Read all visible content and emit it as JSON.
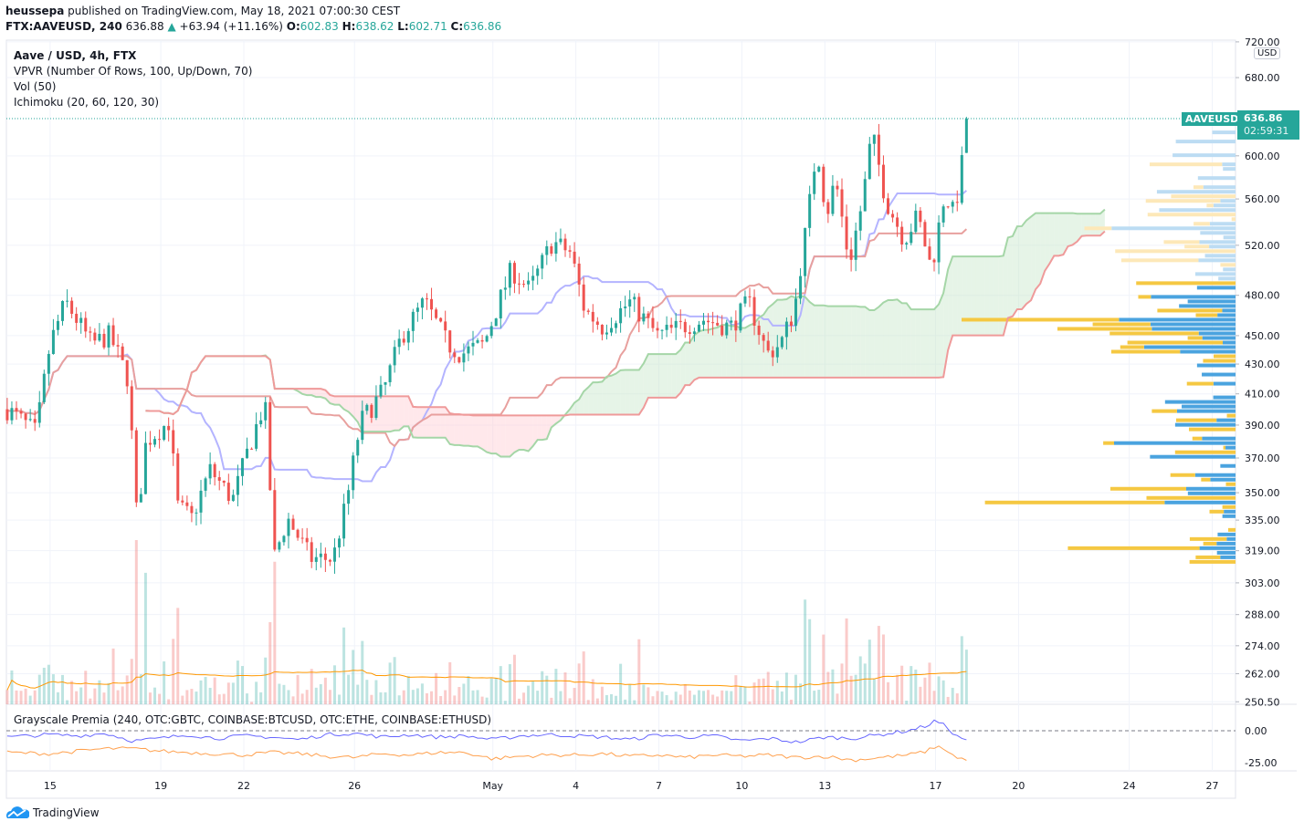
{
  "header": {
    "publisher": "heussepa",
    "published_text": "published on TradingView.com, May 18, 2021 07:00:30 CEST",
    "symbol": "FTX:AAVEUSD, 240",
    "last": "636.88",
    "change": "+63.94 (+11.16%)",
    "open_label": "O:",
    "open": "602.83",
    "high_label": "H:",
    "high": "638.62",
    "low_label": "L:",
    "low": "602.71",
    "close_label": "C:",
    "close": "636.86"
  },
  "legend": {
    "title": "Aave / USD, 4h, FTX",
    "vpvr": "VPVR (Number Of Rows, 100, Up/Down, 70)",
    "vol": "Vol (50)",
    "ichimoku": "Ichimoku (20, 60, 120, 30)"
  },
  "price_axis": {
    "currency": "USD",
    "symbol_tag": "AAVEUSD",
    "last_price": "636.86",
    "countdown": "02:59:31",
    "labels": [
      "720.00",
      "680.00",
      "600.00",
      "560.00",
      "520.00",
      "480.00",
      "450.00",
      "430.00",
      "410.00",
      "390.00",
      "370.00",
      "350.00",
      "335.00",
      "319.00",
      "303.00",
      "288.00",
      "274.00",
      "262.00",
      "250.50"
    ]
  },
  "premia": {
    "title": "Grayscale Premia (240, OTC:GBTC, COINBASE:BTCUSD, OTC:ETHE, COINBASE:ETHUSD)",
    "labels": [
      "0.00",
      "-25.00"
    ]
  },
  "time_axis": {
    "labels": [
      {
        "text": "15",
        "day": 0
      },
      {
        "text": "19",
        "day": 4
      },
      {
        "text": "22",
        "day": 7
      },
      {
        "text": "26",
        "day": 11
      },
      {
        "text": "May",
        "day": 16
      },
      {
        "text": "4",
        "day": 19
      },
      {
        "text": "7",
        "day": 22
      },
      {
        "text": "10",
        "day": 25
      },
      {
        "text": "13",
        "day": 28
      },
      {
        "text": "17",
        "day": 32
      },
      {
        "text": "20",
        "day": 35
      },
      {
        "text": "24",
        "day": 39
      },
      {
        "text": "27",
        "day": 42
      }
    ]
  },
  "brand": {
    "name": "TradingView"
  },
  "colors": {
    "up": "#26a69a",
    "down": "#ef5350",
    "tenkan": "#b4b4ff",
    "kijun": "#e8a09e",
    "cloud_up": "#c8e6c9",
    "cloud_down": "#ffcdd2",
    "vp_up": "#4aa3df",
    "vp_down": "#f5c842",
    "premia_btc": "#6666ff",
    "premia_eth": "#ffa04d"
  },
  "chart_data": {
    "type": "candlestick",
    "title": "Aave / USD, 4h, FTX",
    "x_unit": "days since Apr 15 2021",
    "xlim": [
      -1.58,
      42.84
    ],
    "ylim": [
      249.5,
      722
    ],
    "y_scale": "log",
    "close_keypoints": [
      [
        -1.55,
        400
      ],
      [
        -0.5,
        385
      ],
      [
        0,
        444
      ],
      [
        0.56,
        475
      ],
      [
        1.49,
        444
      ],
      [
        2.15,
        450
      ],
      [
        2.81,
        420
      ],
      [
        3.14,
        334
      ],
      [
        3.47,
        380
      ],
      [
        4.29,
        392
      ],
      [
        4.62,
        342
      ],
      [
        5.12,
        336
      ],
      [
        5.78,
        363
      ],
      [
        6.6,
        346
      ],
      [
        7.26,
        380
      ],
      [
        7.76,
        404
      ],
      [
        8.09,
        315
      ],
      [
        8.58,
        336
      ],
      [
        9.41,
        315
      ],
      [
        10.23,
        315
      ],
      [
        10.73,
        346
      ],
      [
        11.22,
        392
      ],
      [
        12.05,
        412
      ],
      [
        12.71,
        450
      ],
      [
        13.53,
        475
      ],
      [
        14.36,
        444
      ],
      [
        14.85,
        437
      ],
      [
        15.68,
        444
      ],
      [
        16.67,
        500
      ],
      [
        17.33,
        484
      ],
      [
        18.15,
        523
      ],
      [
        18.81,
        514
      ],
      [
        19.31,
        469
      ],
      [
        19.97,
        456
      ],
      [
        20.96,
        475
      ],
      [
        21.95,
        450
      ],
      [
        22.77,
        456
      ],
      [
        23.6,
        462
      ],
      [
        24.59,
        456
      ],
      [
        25.25,
        475
      ],
      [
        25.91,
        437
      ],
      [
        26.4,
        444
      ],
      [
        26.9,
        469
      ],
      [
        27.39,
        545
      ],
      [
        27.72,
        610
      ],
      [
        28.05,
        545
      ],
      [
        28.38,
        578
      ],
      [
        28.88,
        505
      ],
      [
        29.37,
        559
      ],
      [
        29.7,
        622
      ],
      [
        30.2,
        559
      ],
      [
        30.86,
        525
      ],
      [
        31.35,
        545
      ],
      [
        31.85,
        500
      ],
      [
        32.34,
        566
      ],
      [
        32.67,
        545
      ],
      [
        33.0,
        600
      ],
      [
        33.17,
        636.86
      ]
    ],
    "premia_keypoints": {
      "btc": [
        [
          -1.55,
          -5
        ],
        [
          0,
          -3
        ],
        [
          1,
          -4
        ],
        [
          2,
          -2
        ],
        [
          3,
          -8
        ],
        [
          4,
          -6
        ],
        [
          5,
          -3
        ],
        [
          6,
          -6
        ],
        [
          7,
          -4
        ],
        [
          8,
          -5
        ],
        [
          9,
          -7
        ],
        [
          10,
          -3
        ],
        [
          11,
          -2
        ],
        [
          12,
          -5
        ],
        [
          13,
          -3
        ],
        [
          14,
          -5
        ],
        [
          15,
          -4
        ],
        [
          16,
          -7
        ],
        [
          17,
          -4
        ],
        [
          18,
          -3
        ],
        [
          19,
          -4
        ],
        [
          20,
          -5
        ],
        [
          21,
          -7
        ],
        [
          22,
          -3
        ],
        [
          23,
          -5
        ],
        [
          24,
          -4
        ],
        [
          25,
          -8
        ],
        [
          26,
          -6
        ],
        [
          27,
          -9
        ],
        [
          28,
          -5
        ],
        [
          29,
          -6
        ],
        [
          30,
          -3
        ],
        [
          31,
          0
        ],
        [
          31.7,
          4
        ],
        [
          32,
          8
        ],
        [
          32.4,
          3
        ],
        [
          32.8,
          -5
        ],
        [
          33.17,
          -7
        ]
      ],
      "eth": [
        [
          -1.55,
          -17
        ],
        [
          0,
          -18
        ],
        [
          1,
          -16
        ],
        [
          2,
          -14
        ],
        [
          3,
          -14
        ],
        [
          4,
          -16
        ],
        [
          5,
          -17
        ],
        [
          6,
          -18
        ],
        [
          7,
          -19
        ],
        [
          8,
          -17
        ],
        [
          9,
          -18
        ],
        [
          10,
          -20
        ],
        [
          11,
          -21
        ],
        [
          12,
          -18
        ],
        [
          13,
          -19
        ],
        [
          14,
          -17
        ],
        [
          15,
          -17
        ],
        [
          16,
          -22
        ],
        [
          17,
          -20
        ],
        [
          18,
          -19
        ],
        [
          19,
          -19
        ],
        [
          20,
          -18
        ],
        [
          21,
          -20
        ],
        [
          22,
          -19
        ],
        [
          23,
          -21
        ],
        [
          24,
          -19
        ],
        [
          25,
          -20
        ],
        [
          26,
          -19
        ],
        [
          27,
          -21
        ],
        [
          28,
          -20
        ],
        [
          29,
          -23
        ],
        [
          30,
          -21
        ],
        [
          31,
          -19
        ],
        [
          31.7,
          -16
        ],
        [
          32,
          -12
        ],
        [
          32.4,
          -15
        ],
        [
          32.8,
          -22
        ],
        [
          33.17,
          -22
        ]
      ]
    }
  }
}
